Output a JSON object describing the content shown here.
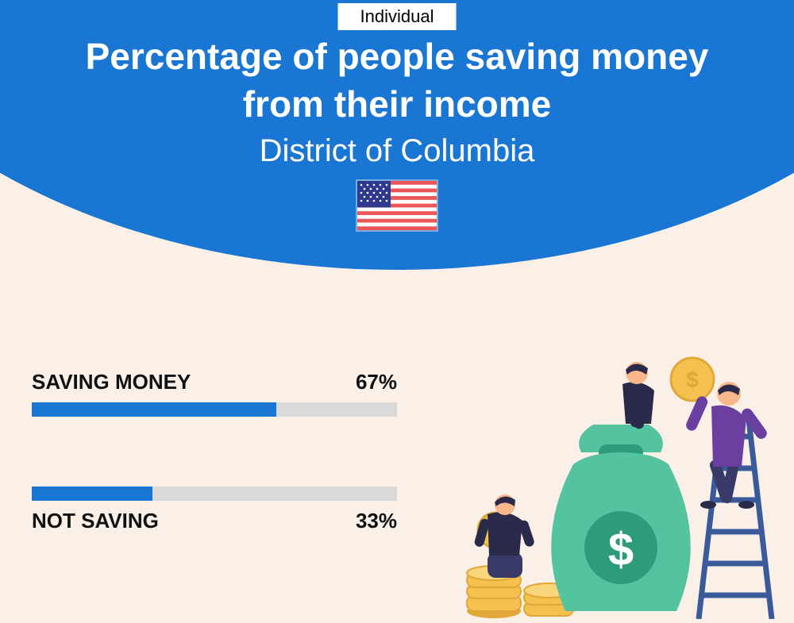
{
  "colors": {
    "header_bg": "#1976d2",
    "page_bg": "#faf0e8",
    "bar_fill": "#1976d2",
    "bar_track": "#d9d9d9",
    "text_dark": "#111111",
    "text_light": "#ffffff",
    "flag_red": "#eb5757",
    "flag_blue": "#2f3a8f",
    "money_green": "#53c3a0",
    "money_dark_green": "#2e9b7a",
    "coin_gold": "#f4c04e",
    "coin_gold_dark": "#e0a838",
    "person_purple": "#6b3fa0",
    "person_navy": "#2a2a4a",
    "person_pants": "#3a3a6a",
    "skin": "#f9b88c",
    "ladder": "#3a5a9a"
  },
  "header": {
    "badge": "Individual",
    "title_line1": "Percentage of people saving money",
    "title_line2": "from their income",
    "subtitle": "District of Columbia"
  },
  "bars": [
    {
      "label": "SAVING MONEY",
      "value": 67,
      "display": "67%",
      "label_position": "above"
    },
    {
      "label": "NOT SAVING",
      "value": 33,
      "display": "33%",
      "label_position": "below"
    }
  ],
  "typography": {
    "badge_fontsize": 22,
    "title_fontsize": 46,
    "subtitle_fontsize": 40,
    "bar_label_fontsize": 26
  }
}
